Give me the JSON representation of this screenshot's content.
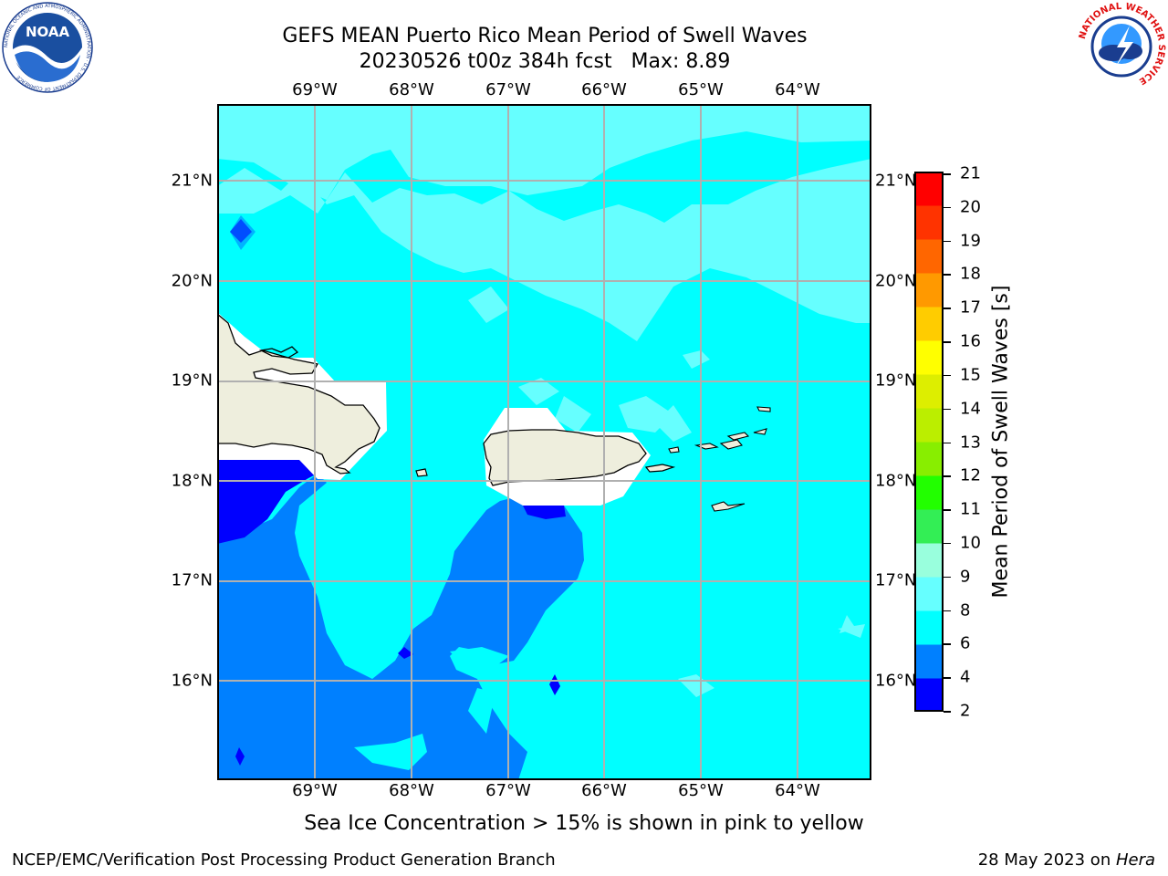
{
  "title": {
    "line1": "GEFS MEAN Puerto Rico Mean Period of Swell Waves",
    "line2": "20230526 t00z 384h fcst   Max: 8.89"
  },
  "logos": {
    "left_text": "NOAA",
    "left_ring": "NATIONAL OCEANIC AND ATMOSPHERIC ADMINISTRATION · U.S. DEPARTMENT OF COMMERCE",
    "right_ring": "NATIONAL WEATHER SERVICE"
  },
  "map": {
    "lon_labels": [
      "69°W",
      "68°W",
      "67°W",
      "66°W",
      "65°W",
      "64°W"
    ],
    "lat_labels": [
      "21°N",
      "20°N",
      "19°N",
      "18°N",
      "17°N",
      "16°N"
    ],
    "colors": {
      "c2_4": "#0000ff",
      "c4_6": "#0080ff",
      "c6_8": "#00ffff",
      "c8_9": "#66ffff",
      "land": "#eeeedd",
      "grid": "#b0b0b0"
    }
  },
  "colorbar": {
    "label": "Mean Period of Swell Waves [s]",
    "ticks": [
      "21",
      "20",
      "19",
      "18",
      "17",
      "16",
      "15",
      "14",
      "13",
      "12",
      "11",
      "10",
      "9",
      "8",
      "6",
      "4",
      "2"
    ],
    "colors": [
      "#0000ff",
      "#0080ff",
      "#00ffff",
      "#66ffff",
      "#99ffdd",
      "#33ee55",
      "#22ff00",
      "#88ee00",
      "#bbee00",
      "#ddee00",
      "#ffff00",
      "#ffcc00",
      "#ff9900",
      "#ff6600",
      "#ff3300",
      "#ff0000"
    ]
  },
  "note": "Sea Ice Concentration > 15% is shown in pink to yellow",
  "footer": {
    "left": "NCEP/EMC/Verification Post Processing Product Generation Branch",
    "date": "28 May 2023 on ",
    "machine": "Hera"
  }
}
